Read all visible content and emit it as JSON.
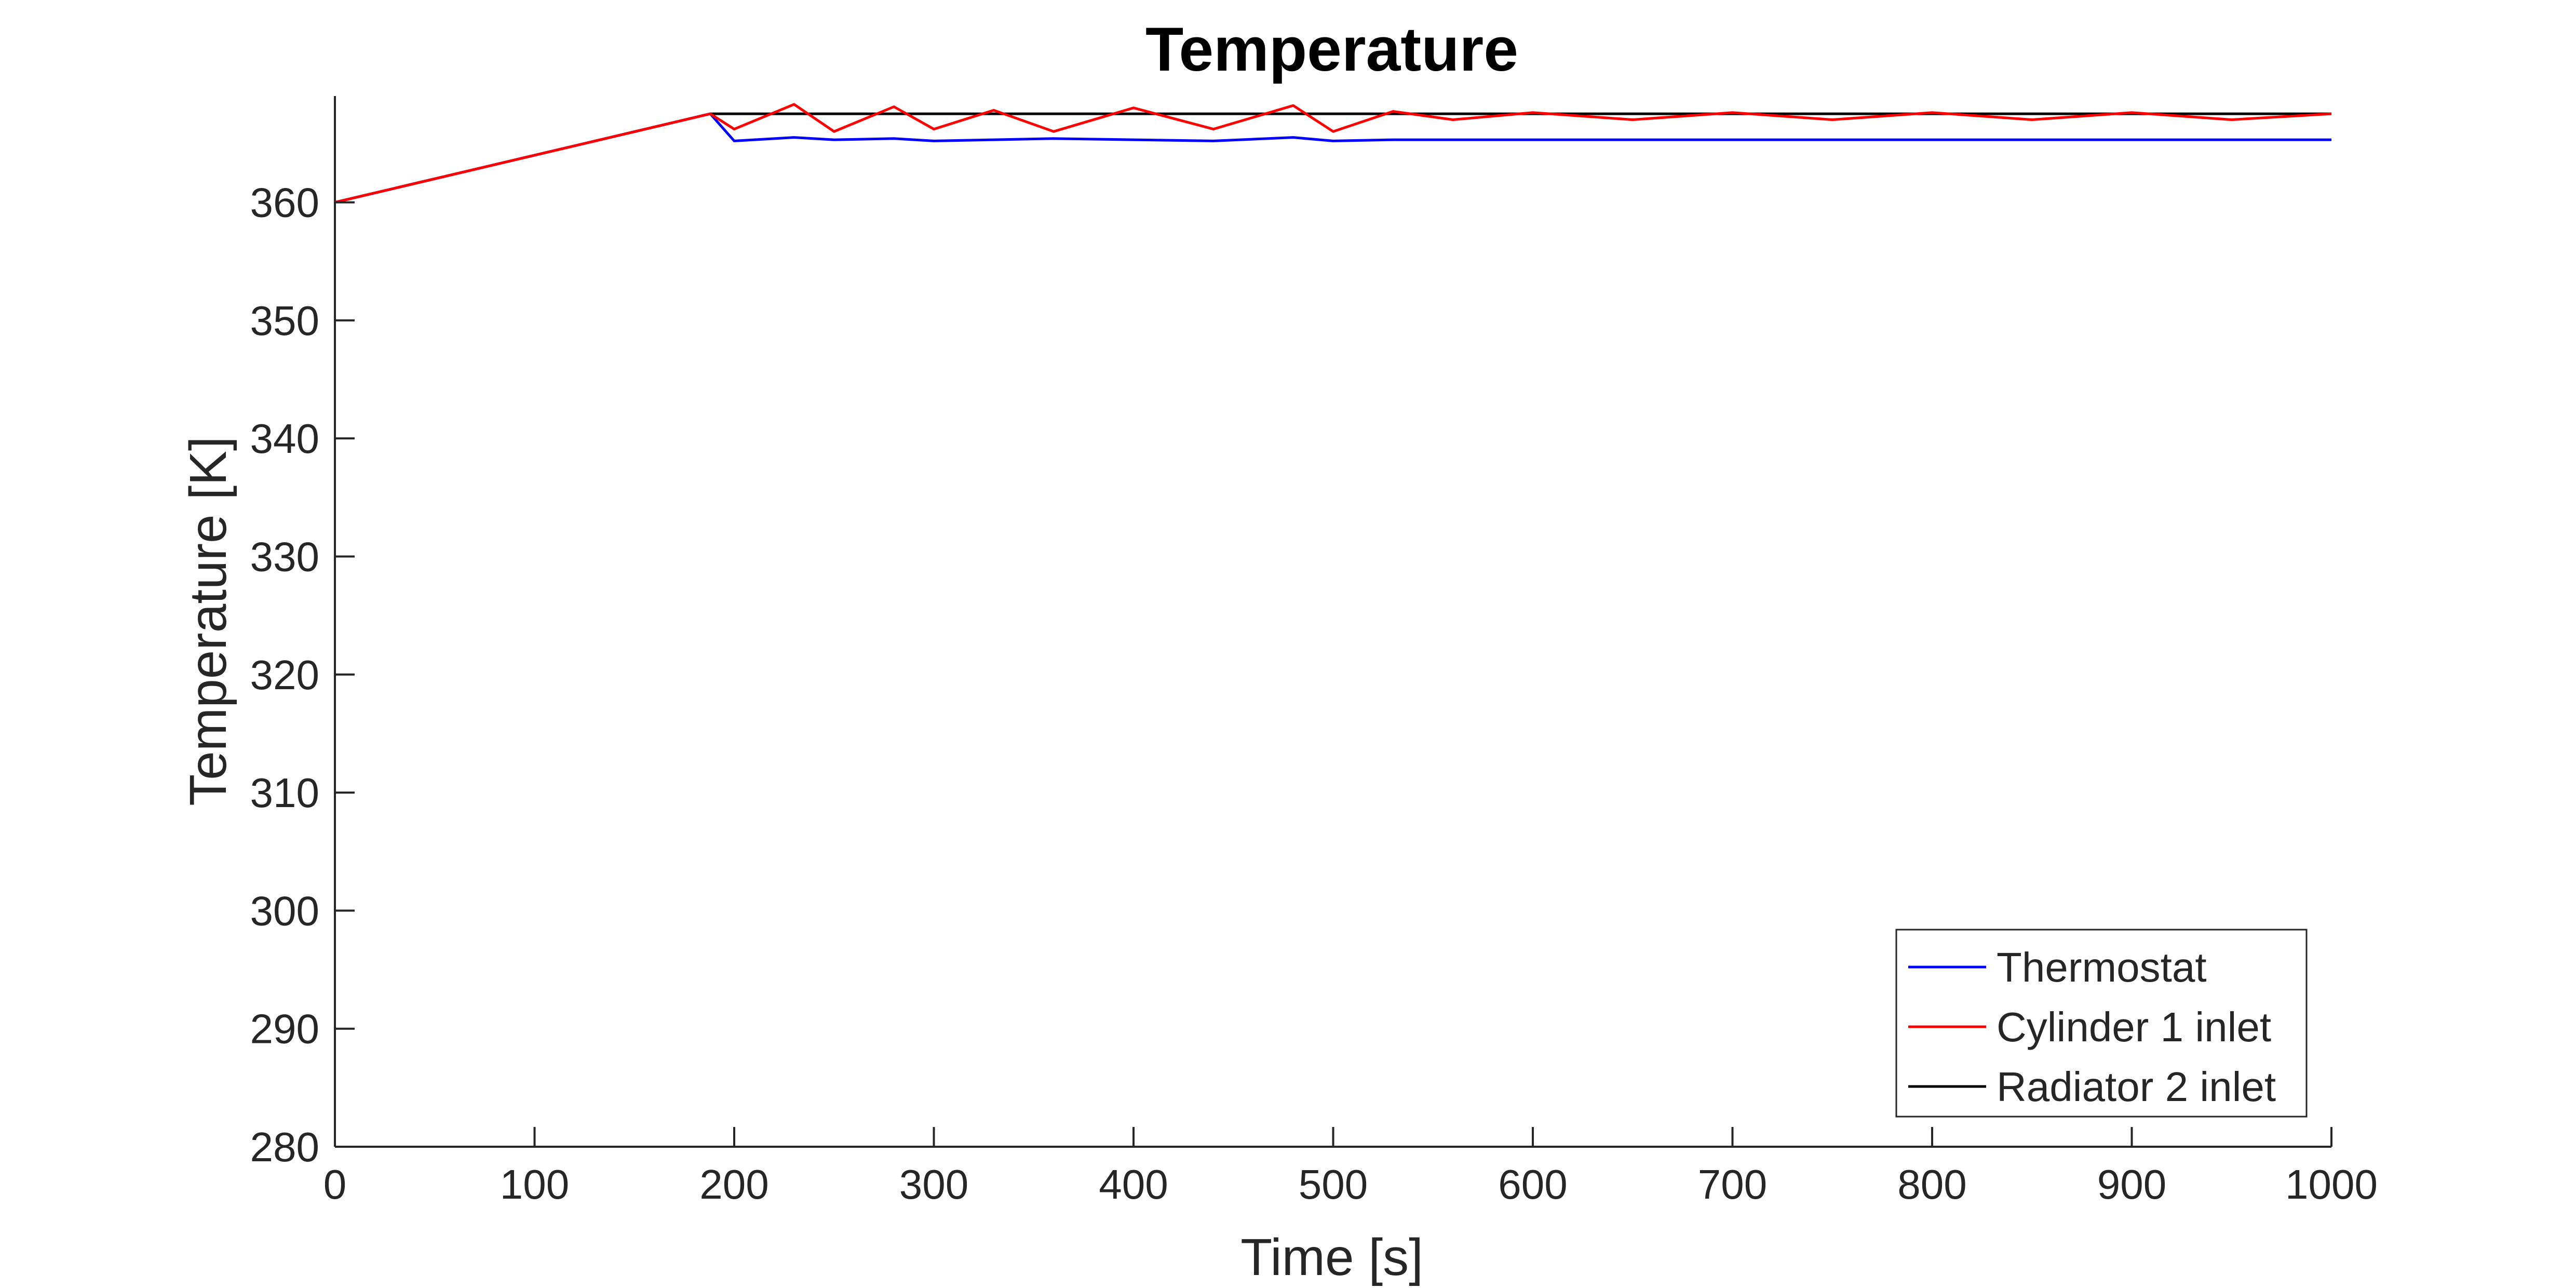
{
  "chart_data": {
    "type": "line",
    "title": "Temperature",
    "xlabel": "Time [s]",
    "ylabel": "Temperature [K]",
    "xlim": [
      0,
      1000
    ],
    "ylim": [
      280,
      369
    ],
    "x_ticks": [
      0,
      100,
      200,
      300,
      400,
      500,
      600,
      700,
      800,
      900,
      1000
    ],
    "y_ticks": [
      280,
      290,
      300,
      310,
      320,
      330,
      340,
      350,
      360
    ],
    "grid": false,
    "legend_position": "bottom-right",
    "series": [
      {
        "name": "Thermostat",
        "color": "#0000ff",
        "x": [
          0,
          188,
          200,
          230,
          250,
          280,
          300,
          330,
          360,
          400,
          440,
          480,
          500,
          530,
          560,
          600,
          650,
          700,
          750,
          800,
          850,
          900,
          950,
          1000
        ],
        "values": [
          360,
          367.5,
          365.2,
          365.5,
          365.3,
          365.4,
          365.2,
          365.3,
          365.4,
          365.3,
          365.2,
          365.5,
          365.2,
          365.3,
          365.3,
          365.3,
          365.3,
          365.3,
          365.3,
          365.3,
          365.3,
          365.3,
          365.3,
          365.3
        ]
      },
      {
        "name": "Cylinder 1 inlet",
        "color": "#ff0000",
        "x": [
          0,
          188,
          200,
          230,
          250,
          280,
          300,
          330,
          360,
          400,
          440,
          480,
          500,
          530,
          560,
          600,
          650,
          700,
          750,
          800,
          850,
          900,
          950,
          1000
        ],
        "values": [
          360,
          367.5,
          366.2,
          368.3,
          366.0,
          368.1,
          366.2,
          367.8,
          366.0,
          368.0,
          366.2,
          368.2,
          366.0,
          367.7,
          367.0,
          367.6,
          367.0,
          367.6,
          367.0,
          367.6,
          367.0,
          367.6,
          367.0,
          367.5
        ]
      },
      {
        "name": "Radiator 2 inlet",
        "color": "#000000",
        "x": [
          0,
          188,
          1000
        ],
        "values": [
          360,
          367.5,
          367.5
        ]
      }
    ]
  }
}
